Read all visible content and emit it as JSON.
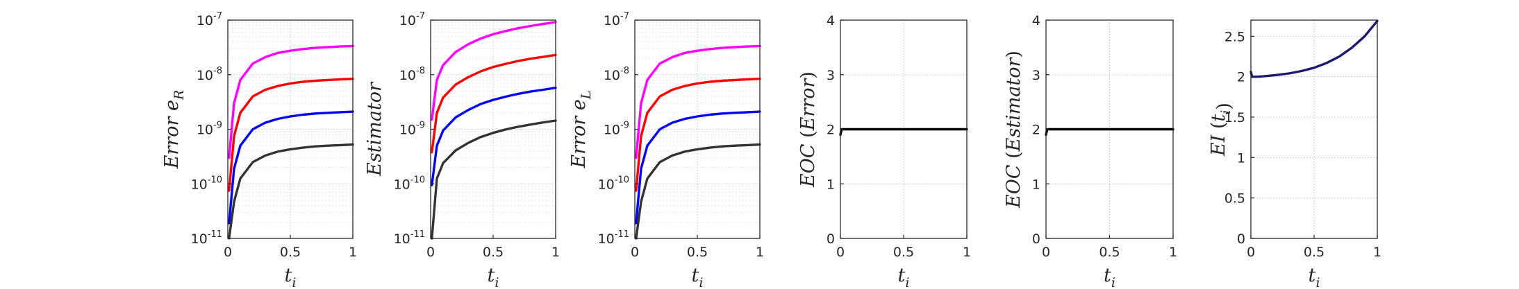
{
  "chart_data": [
    {
      "type": "line",
      "ylabel": "Error e_R",
      "xlabel": "t_i",
      "yscale": "log",
      "ylim": [
        1e-11,
        1e-07
      ],
      "xlim": [
        0,
        1
      ],
      "grid": true,
      "xtick_labels": [
        "0",
        "0.5",
        "1"
      ],
      "ytick_labels": [
        {
          "base": "10",
          "exp": "-11"
        },
        {
          "base": "10",
          "exp": "-10"
        },
        {
          "base": "10",
          "exp": "-9"
        },
        {
          "base": "10",
          "exp": "-8"
        },
        {
          "base": "10",
          "exp": "-7"
        }
      ],
      "x": [
        0.01,
        0.05,
        0.1,
        0.2,
        0.3,
        0.4,
        0.5,
        0.6,
        0.7,
        0.8,
        0.9,
        1.0
      ],
      "series": [
        {
          "color": "#ff00ff",
          "values": [
            3e-10,
            3e-09,
            8e-09,
            1.6e-08,
            2.1e-08,
            2.5e-08,
            2.75e-08,
            2.95e-08,
            3.1e-08,
            3.2e-08,
            3.28e-08,
            3.35e-08
          ]
        },
        {
          "color": "#ff0000",
          "values": [
            7.5e-11,
            7.5e-10,
            2e-09,
            4e-09,
            5.3e-09,
            6.2e-09,
            6.9e-09,
            7.4e-09,
            7.75e-09,
            8e-09,
            8.2e-09,
            8.4e-09
          ]
        },
        {
          "color": "#0000ff",
          "values": [
            1.9e-11,
            1.9e-10,
            5e-10,
            1e-09,
            1.32e-09,
            1.55e-09,
            1.72e-09,
            1.85e-09,
            1.94e-09,
            2e-09,
            2.05e-09,
            2.1e-09
          ]
        },
        {
          "color": "#333333",
          "values": [
            1e-11,
            4.7e-11,
            1.25e-10,
            2.5e-10,
            3.3e-10,
            3.9e-10,
            4.3e-10,
            4.6e-10,
            4.85e-10,
            5e-10,
            5.12e-10,
            5.25e-10
          ]
        }
      ]
    },
    {
      "type": "line",
      "ylabel": "Estimator",
      "xlabel": "t_i",
      "yscale": "log",
      "ylim": [
        1e-11,
        1e-07
      ],
      "xlim": [
        0,
        1
      ],
      "grid": true,
      "xtick_labels": [
        "0",
        "0.5",
        "1"
      ],
      "ytick_labels": [
        {
          "base": "10",
          "exp": "-11"
        },
        {
          "base": "10",
          "exp": "-10"
        },
        {
          "base": "10",
          "exp": "-9"
        },
        {
          "base": "10",
          "exp": "-8"
        },
        {
          "base": "10",
          "exp": "-7"
        }
      ],
      "x": [
        0.01,
        0.05,
        0.1,
        0.2,
        0.3,
        0.4,
        0.5,
        0.6,
        0.7,
        0.8,
        0.9,
        1.0
      ],
      "series": [
        {
          "color": "#ff00ff",
          "values": [
            1.5e-09,
            8e-09,
            1.5e-08,
            2.6e-08,
            3.6e-08,
            4.6e-08,
            5.5e-08,
            6.3e-08,
            7.1e-08,
            7.8e-08,
            8.5e-08,
            9.2e-08
          ]
        },
        {
          "color": "#ff0000",
          "values": [
            3.8e-10,
            2e-09,
            3.8e-09,
            6.6e-09,
            9e-09,
            1.15e-08,
            1.38e-08,
            1.58e-08,
            1.78e-08,
            1.96e-08,
            2.12e-08,
            2.3e-08
          ]
        },
        {
          "color": "#0000ff",
          "values": [
            9.5e-11,
            5e-10,
            9.5e-10,
            1.65e-09,
            2.25e-09,
            2.9e-09,
            3.45e-09,
            3.95e-09,
            4.45e-09,
            4.9e-09,
            5.3e-09,
            5.75e-09
          ]
        },
        {
          "color": "#333333",
          "values": [
            1e-11,
            1.25e-10,
            2.4e-10,
            4.1e-10,
            5.6e-10,
            7.2e-10,
            8.6e-10,
            9.9e-10,
            1.11e-09,
            1.22e-09,
            1.33e-09,
            1.44e-09
          ]
        }
      ]
    },
    {
      "type": "line",
      "ylabel": "Error e_L",
      "xlabel": "t_i",
      "yscale": "log",
      "ylim": [
        1e-11,
        1e-07
      ],
      "xlim": [
        0,
        1
      ],
      "grid": true,
      "xtick_labels": [
        "0",
        "0.5",
        "1"
      ],
      "ytick_labels": [
        {
          "base": "10",
          "exp": "-11"
        },
        {
          "base": "10",
          "exp": "-10"
        },
        {
          "base": "10",
          "exp": "-9"
        },
        {
          "base": "10",
          "exp": "-8"
        },
        {
          "base": "10",
          "exp": "-7"
        }
      ],
      "x": [
        0.01,
        0.05,
        0.1,
        0.2,
        0.3,
        0.4,
        0.5,
        0.6,
        0.7,
        0.8,
        0.9,
        1.0
      ],
      "series": [
        {
          "color": "#ff00ff",
          "values": [
            3e-10,
            3e-09,
            8e-09,
            1.6e-08,
            2.1e-08,
            2.5e-08,
            2.75e-08,
            2.95e-08,
            3.1e-08,
            3.2e-08,
            3.28e-08,
            3.35e-08
          ]
        },
        {
          "color": "#ff0000",
          "values": [
            7.5e-11,
            7.5e-10,
            2e-09,
            4e-09,
            5.3e-09,
            6.2e-09,
            6.9e-09,
            7.4e-09,
            7.75e-09,
            8e-09,
            8.2e-09,
            8.4e-09
          ]
        },
        {
          "color": "#0000ff",
          "values": [
            1.9e-11,
            1.9e-10,
            5e-10,
            1e-09,
            1.32e-09,
            1.55e-09,
            1.72e-09,
            1.85e-09,
            1.94e-09,
            2e-09,
            2.05e-09,
            2.1e-09
          ]
        },
        {
          "color": "#333333",
          "values": [
            1e-11,
            4.7e-11,
            1.25e-10,
            2.5e-10,
            3.3e-10,
            3.9e-10,
            4.3e-10,
            4.6e-10,
            4.85e-10,
            5e-10,
            5.12e-10,
            5.25e-10
          ]
        }
      ]
    },
    {
      "type": "line",
      "ylabel": "EOC (Error)",
      "xlabel": "t_i",
      "yscale": "linear",
      "ylim": [
        0,
        4
      ],
      "xlim": [
        0,
        1
      ],
      "grid": true,
      "xtick_labels": [
        "0",
        "0.5",
        "1"
      ],
      "ytick_labels": [
        "0",
        "1",
        "2",
        "3",
        "4"
      ],
      "x": [
        0.0,
        0.01,
        1.0
      ],
      "series": [
        {
          "color": "#000000",
          "values": [
            1.9,
            2.0,
            2.0
          ]
        }
      ]
    },
    {
      "type": "line",
      "ylabel": "EOC (Estimator)",
      "xlabel": "t_i",
      "yscale": "linear",
      "ylim": [
        0,
        4
      ],
      "xlim": [
        0,
        1
      ],
      "grid": true,
      "xtick_labels": [
        "0",
        "0.5",
        "1"
      ],
      "ytick_labels": [
        "0",
        "1",
        "2",
        "3",
        "4"
      ],
      "x": [
        0.0,
        0.01,
        1.0
      ],
      "series": [
        {
          "color": "#000000",
          "values": [
            1.9,
            2.0,
            2.0
          ]
        }
      ]
    },
    {
      "type": "line",
      "ylabel": "EI (t_i)",
      "xlabel": "t_i",
      "yscale": "linear",
      "ylim": [
        0,
        2.7
      ],
      "xlim": [
        0,
        1
      ],
      "grid": true,
      "xtick_labels": [
        "0",
        "0.5",
        "1"
      ],
      "ytick_labels": [
        "0",
        "0.5",
        "1",
        "1.5",
        "2",
        "2.5"
      ],
      "x": [
        0.0,
        0.01,
        0.05,
        0.1,
        0.2,
        0.3,
        0.4,
        0.5,
        0.6,
        0.7,
        0.8,
        0.9,
        1.0
      ],
      "series": [
        {
          "color": "#1a1a6e",
          "values": [
            2.06,
            2.0,
            2.0,
            2.005,
            2.02,
            2.04,
            2.07,
            2.11,
            2.17,
            2.25,
            2.36,
            2.5,
            2.69
          ]
        }
      ]
    }
  ]
}
